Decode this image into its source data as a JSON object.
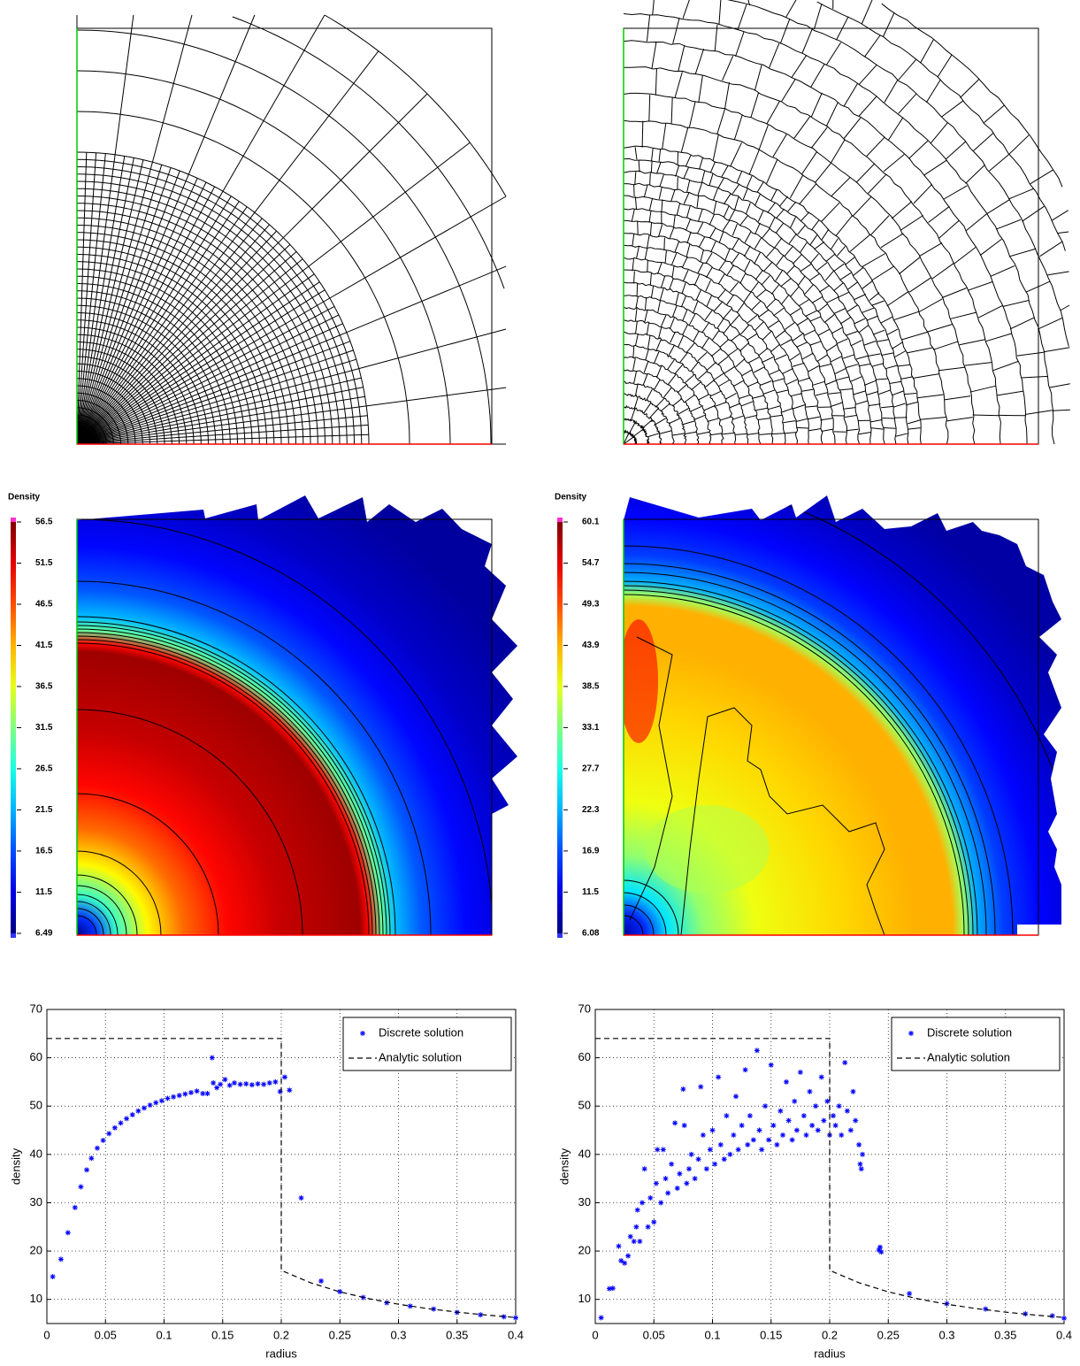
{
  "chart_data": [
    {
      "type": "heatmap",
      "title": "Density",
      "clim": [
        6.49,
        56.5
      ],
      "colorbar_ticks": [
        6.49,
        11.5,
        16.5,
        21.5,
        26.5,
        31.5,
        36.5,
        41.5,
        46.5,
        51.5,
        56.5
      ]
    },
    {
      "type": "heatmap",
      "title": "Density",
      "clim": [
        6.08,
        60.1
      ],
      "colorbar_ticks": [
        6.08,
        11.5,
        16.9,
        22.3,
        27.7,
        33.1,
        38.5,
        43.9,
        49.3,
        54.7,
        60.1
      ]
    },
    {
      "type": "scatter",
      "xlabel": "radius",
      "ylabel": "density",
      "xlim": [
        0,
        0.4
      ],
      "ylim": [
        5,
        70
      ],
      "xticks": [
        0,
        0.05,
        0.1,
        0.15,
        0.2,
        0.25,
        0.3,
        0.35,
        0.4
      ],
      "yticks": [
        10,
        20,
        30,
        40,
        50,
        60,
        70
      ],
      "grid": true,
      "legend": "upper right",
      "series": [
        {
          "name": "Discrete solution",
          "color": "#0000ff",
          "marker": "*",
          "x": [
            0.005,
            0.012,
            0.018,
            0.024,
            0.029,
            0.034,
            0.038,
            0.043,
            0.048,
            0.053,
            0.058,
            0.063,
            0.068,
            0.073,
            0.078,
            0.083,
            0.088,
            0.093,
            0.098,
            0.103,
            0.108,
            0.113,
            0.118,
            0.123,
            0.128,
            0.133,
            0.137,
            0.141,
            0.142,
            0.145,
            0.148,
            0.152,
            0.156,
            0.16,
            0.165,
            0.17,
            0.175,
            0.18,
            0.185,
            0.19,
            0.195,
            0.199,
            0.203,
            0.207,
            0.217,
            0.234,
            0.25,
            0.27,
            0.29,
            0.31,
            0.33,
            0.35,
            0.37,
            0.39,
            0.4
          ],
          "values": [
            14.7,
            18.3,
            23.8,
            29,
            33.3,
            36.8,
            39.2,
            41.3,
            42.9,
            44.3,
            45.5,
            46.5,
            47.4,
            48.2,
            49,
            49.6,
            50.2,
            50.7,
            51.1,
            51.6,
            51.9,
            52.2,
            52.5,
            52.8,
            53.1,
            52.6,
            52.6,
            60,
            54.8,
            53.8,
            54.5,
            55.5,
            54.3,
            54.8,
            54.5,
            54.6,
            54.4,
            54.6,
            54.5,
            54.8,
            55,
            53,
            56,
            53.3,
            31,
            13.8,
            11.6,
            10.4,
            9.3,
            8.6,
            8,
            7.3,
            6.8,
            6.4,
            6.2
          ]
        },
        {
          "name": "Analytic solution",
          "color": "#000000",
          "style": "dashed",
          "x": [
            0,
            0.2,
            0.2,
            0.225,
            0.25,
            0.275,
            0.3,
            0.325,
            0.35,
            0.375,
            0.4
          ],
          "values": [
            64,
            64,
            16,
            13.44,
            11.56,
            10.12,
            9,
            8.1,
            7.37,
            6.76,
            6.25
          ]
        }
      ]
    },
    {
      "type": "scatter",
      "xlabel": "radius",
      "ylabel": "density",
      "xlim": [
        0,
        0.4
      ],
      "ylim": [
        5,
        70
      ],
      "xticks": [
        0,
        0.05,
        0.1,
        0.15,
        0.2,
        0.25,
        0.3,
        0.35,
        0.4
      ],
      "yticks": [
        10,
        20,
        30,
        40,
        50,
        60,
        70
      ],
      "grid": true,
      "legend": "upper right",
      "series": [
        {
          "name": "Discrete solution",
          "color": "#0000ff",
          "marker": "*",
          "x": [
            0.005,
            0.012,
            0.015,
            0.02,
            0.022,
            0.025,
            0.028,
            0.03,
            0.033,
            0.035,
            0.036,
            0.038,
            0.04,
            0.042,
            0.045,
            0.047,
            0.05,
            0.052,
            0.053,
            0.056,
            0.058,
            0.06,
            0.062,
            0.065,
            0.068,
            0.07,
            0.072,
            0.075,
            0.076,
            0.078,
            0.08,
            0.082,
            0.085,
            0.088,
            0.09,
            0.092,
            0.095,
            0.098,
            0.1,
            0.102,
            0.105,
            0.107,
            0.11,
            0.112,
            0.115,
            0.118,
            0.12,
            0.122,
            0.125,
            0.128,
            0.13,
            0.132,
            0.135,
            0.138,
            0.14,
            0.142,
            0.145,
            0.148,
            0.15,
            0.152,
            0.155,
            0.158,
            0.16,
            0.163,
            0.165,
            0.168,
            0.17,
            0.172,
            0.175,
            0.178,
            0.18,
            0.183,
            0.185,
            0.188,
            0.19,
            0.193,
            0.195,
            0.198,
            0.2,
            0.203,
            0.205,
            0.208,
            0.21,
            0.213,
            0.215,
            0.218,
            0.22,
            0.222,
            0.225,
            0.226,
            0.227,
            0.228,
            0.242,
            0.243,
            0.244,
            0.268,
            0.3,
            0.333,
            0.367,
            0.39,
            0.4
          ],
          "values": [
            6.2,
            12.2,
            12.3,
            21,
            18,
            17.5,
            19,
            23,
            22,
            25,
            28.5,
            22,
            30,
            37,
            25,
            31,
            26,
            34,
            41,
            30,
            41,
            35,
            32,
            38,
            46.5,
            33,
            36,
            53.5,
            46,
            34,
            37,
            40,
            35,
            39,
            54,
            44,
            37,
            41,
            45,
            38,
            56,
            42,
            39,
            48,
            40,
            44,
            52,
            41,
            46,
            57.5,
            42,
            48,
            43,
            61.5,
            45,
            41,
            50,
            43,
            58.5,
            46,
            42,
            49,
            44,
            55,
            47,
            43,
            51,
            45,
            57,
            48,
            44,
            53,
            46,
            50,
            45,
            56,
            47,
            51,
            44,
            48,
            46,
            50,
            44,
            59,
            49,
            45,
            53,
            47,
            42,
            38,
            37,
            40,
            20.2,
            20.8,
            19.8,
            11.2,
            9.1,
            8,
            7,
            6.6,
            6.1
          ]
        },
        {
          "name": "Analytic solution",
          "color": "#000000",
          "style": "dashed",
          "x": [
            0,
            0.2,
            0.2,
            0.225,
            0.25,
            0.275,
            0.3,
            0.325,
            0.35,
            0.375,
            0.4
          ],
          "values": [
            64,
            64,
            16,
            13.44,
            11.56,
            10.12,
            9,
            8.1,
            7.37,
            6.76,
            6.25
          ]
        }
      ]
    }
  ]
}
